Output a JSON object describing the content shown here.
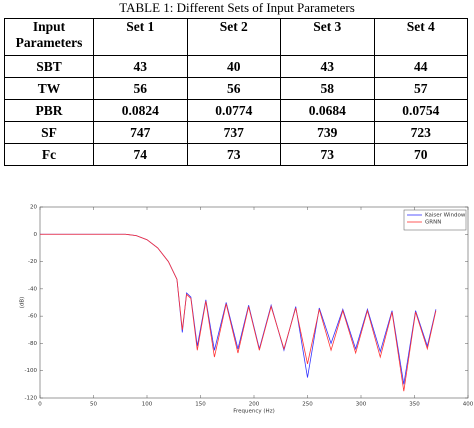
{
  "table": {
    "caption": "TABLE 1: Different Sets of Input Parameters",
    "header": [
      "Input Parameters",
      "Set 1",
      "Set 2",
      "Set 3",
      "Set 4"
    ],
    "rows": [
      [
        "SBT",
        "43",
        "40",
        "43",
        "44"
      ],
      [
        "TW",
        "56",
        "56",
        "58",
        "57"
      ],
      [
        "PBR",
        "0.0824",
        "0.0774",
        "0.0684",
        "0.0754"
      ],
      [
        "SF",
        "747",
        "737",
        "739",
        "723"
      ],
      [
        "Fc",
        "74",
        "73",
        "73",
        "70"
      ]
    ]
  },
  "chart_data": {
    "type": "line",
    "x_label": "Frequency (Hz)",
    "y_label": "(dB)",
    "x": [
      0,
      80,
      90,
      100,
      110,
      120,
      128,
      133,
      137,
      141,
      147,
      155,
      163,
      174,
      185,
      195,
      205,
      216,
      228,
      239,
      250,
      261,
      272,
      283,
      295,
      306,
      318,
      329,
      340,
      351,
      362,
      370
    ],
    "series": [
      {
        "name": "Kaiser Window",
        "color": "#3333ff",
        "values": [
          0,
          0,
          -1,
          -4,
          -10,
          -20,
          -33,
          -72,
          -43,
          -46,
          -82,
          -48,
          -85,
          -50,
          -84,
          -52,
          -84,
          -52,
          -85,
          -53,
          -105,
          -54,
          -80,
          -55,
          -84,
          -55,
          -86,
          -56,
          -110,
          -56,
          -82,
          -55
        ]
      },
      {
        "name": "GRNN",
        "color": "#ff3333",
        "values": [
          0,
          0,
          -1,
          -4,
          -10,
          -20,
          -33,
          -70,
          -44,
          -47,
          -85,
          -49,
          -90,
          -51,
          -87,
          -53,
          -85,
          -53,
          -84,
          -54,
          -95,
          -55,
          -85,
          -56,
          -87,
          -56,
          -90,
          -57,
          -115,
          -57,
          -84,
          -56
        ]
      }
    ],
    "xlim": [
      0,
      400
    ],
    "xticks": [
      0,
      50,
      100,
      150,
      200,
      250,
      300,
      350,
      400
    ],
    "ylim": [
      -120,
      20
    ],
    "yticks": [
      20,
      0,
      -20,
      -40,
      -60,
      -80,
      -100,
      -120
    ],
    "legend": "upper right"
  }
}
